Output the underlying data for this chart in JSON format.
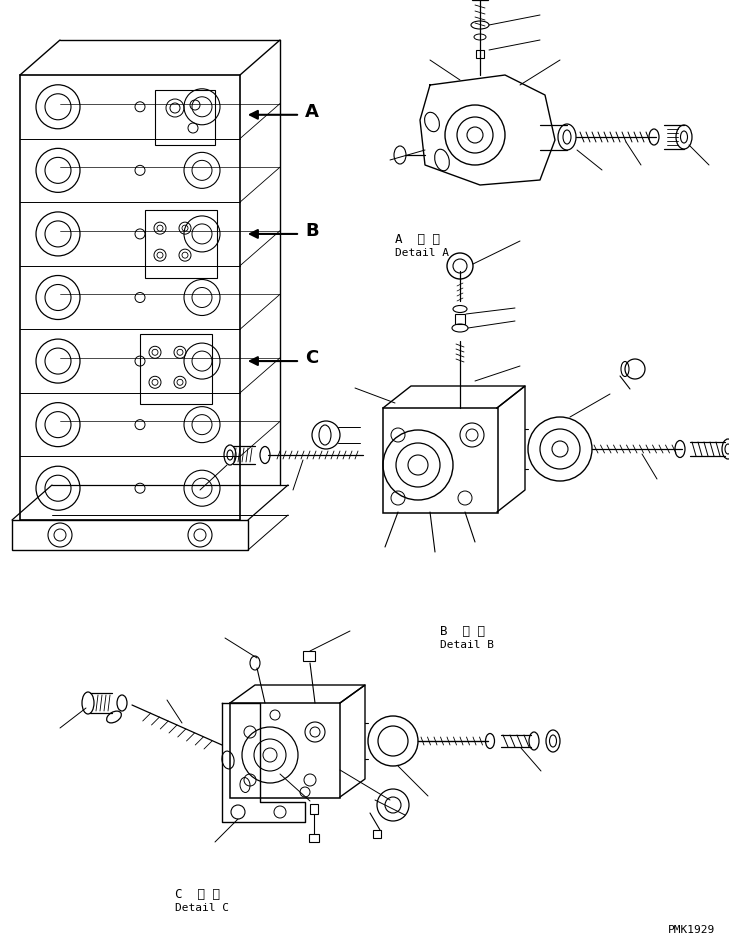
{
  "background_color": "#ffffff",
  "line_color": "#000000",
  "fig_width": 7.29,
  "fig_height": 9.5,
  "dpi": 100,
  "label_A_jp": "A  詳 細",
  "label_A_en": "Detail A",
  "label_B_jp": "B  詳 細",
  "label_B_en": "Detail B",
  "label_C_jp": "C  詳 細",
  "label_C_en": "Detail C",
  "watermark": "PMK1929"
}
